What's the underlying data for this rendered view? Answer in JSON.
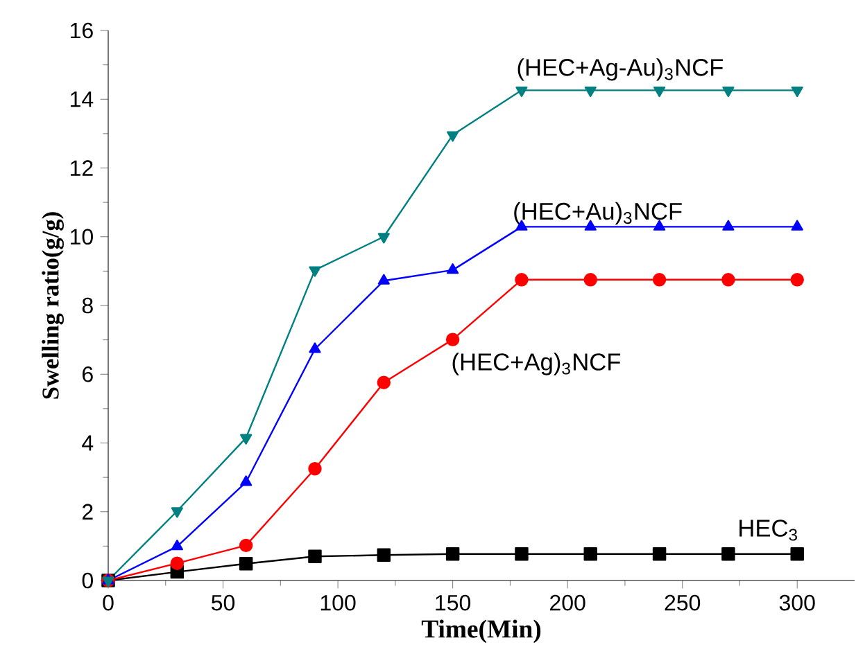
{
  "chart_data": {
    "type": "line",
    "xlabel": "Time(Min)",
    "ylabel": "Swelling ratio(g/g)",
    "x": [
      0,
      30,
      60,
      90,
      120,
      150,
      180,
      210,
      240,
      270,
      300
    ],
    "series": [
      {
        "name": "HEC$_{3}$",
        "color": "#000000",
        "marker": "square",
        "values": [
          0,
          0.25,
          0.49,
          0.7,
          0.74,
          0.77,
          0.77,
          0.77,
          0.77,
          0.77,
          0.77
        ]
      },
      {
        "name": "(HEC+Ag)$_{3}$NCF",
        "color": "#ff0000",
        "marker": "circle",
        "values": [
          0,
          0.5,
          1.02,
          3.25,
          5.76,
          7.01,
          8.75,
          8.75,
          8.75,
          8.75,
          8.75
        ]
      },
      {
        "name": "(HEC+Au)$_{3}$NCF",
        "color": "#0000ff",
        "marker": "triangle",
        "values": [
          0,
          0.99,
          2.86,
          6.73,
          8.72,
          9.03,
          10.29,
          10.29,
          10.29,
          10.29,
          10.29
        ]
      },
      {
        "name": "(HEC+Ag-Au)$_{3}$NCF",
        "color": "#008080",
        "marker": "triangle-down",
        "values": [
          0,
          2.02,
          4.15,
          9.03,
          10.0,
          12.96,
          14.26,
          14.26,
          14.26,
          14.26,
          14.26
        ]
      }
    ],
    "xlim": [
      0,
      325
    ],
    "xticks": [
      0,
      50,
      100,
      150,
      200,
      250,
      300
    ],
    "ylim": [
      0,
      16
    ],
    "yticks": [
      0,
      2,
      4,
      6,
      8,
      10,
      12,
      14,
      16
    ],
    "grid": false,
    "line_style": "solid"
  }
}
